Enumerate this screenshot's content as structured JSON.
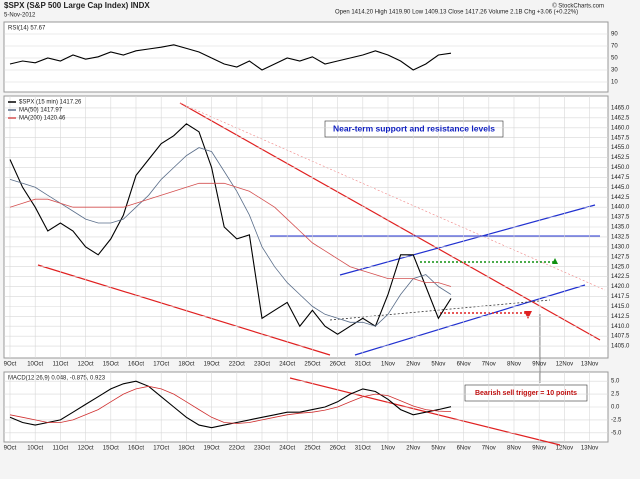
{
  "header": {
    "symbol": "$SPX (S&P 500 Large Cap Index) INDX",
    "date": "5-Nov-2012",
    "quote": "Open 1414.20  High 1419.90  Low 1409.13  Close 1417.26  Volume 2.1B  Chg +3.06 (+0.22%)",
    "source": "© StockCharts.com"
  },
  "chart_data": [
    {
      "type": "line",
      "title": "RSI(14) 57.67",
      "categories": [
        "9Oct",
        null,
        "10Oct",
        null,
        "11Oct",
        null,
        "12Oct",
        null,
        "15Oct",
        null,
        "16Oct",
        null,
        "17Oct",
        null,
        "18Oct",
        null,
        "19Oct",
        null,
        "22Oct",
        null,
        "23Oct",
        null,
        "24Oct",
        null,
        "25Oct",
        null,
        "26Oct",
        null,
        "31Oct",
        null,
        "1Nov",
        null,
        "2Nov",
        null,
        "5Nov",
        null,
        "6Nov",
        null,
        "7Nov",
        null,
        "8Nov",
        null,
        "9Nov",
        null,
        "12Nov",
        null,
        "13Nov",
        null
      ],
      "series": [
        {
          "color": "#000000",
          "values": [
            40,
            45,
            42,
            50,
            45,
            55,
            48,
            52,
            60,
            55,
            62,
            65,
            68,
            72,
            66,
            60,
            50,
            40,
            35,
            45,
            30,
            40,
            50,
            45,
            52,
            40,
            45,
            50,
            55,
            62,
            55,
            45,
            30,
            40,
            55,
            58,
            null,
            null,
            null,
            null,
            null,
            null,
            null,
            null,
            null,
            null,
            null,
            null
          ]
        }
      ],
      "ylim": [
        0,
        100
      ],
      "yticks": [
        10,
        30,
        50,
        70,
        90
      ],
      "grid": true
    },
    {
      "type": "line",
      "categories": [
        "9Oct",
        null,
        "10Oct",
        null,
        "11Oct",
        null,
        "12Oct",
        null,
        "15Oct",
        null,
        "16Oct",
        null,
        "17Oct",
        null,
        "18Oct",
        null,
        "19Oct",
        null,
        "22Oct",
        null,
        "23Oct",
        null,
        "24Oct",
        null,
        "25Oct",
        null,
        "26Oct",
        null,
        "31Oct",
        null,
        "1Nov",
        null,
        "2Nov",
        null,
        "5Nov",
        null,
        "6Nov",
        null,
        "7Nov",
        null,
        "8Nov",
        null,
        "9Nov",
        null,
        "12Nov",
        null,
        "13Nov",
        null
      ],
      "series": [
        {
          "name": "$SPX (15 min) 1417.26",
          "color": "#000000",
          "values": [
            1452,
            1445,
            1440,
            1434,
            1436,
            1434,
            1430,
            1428,
            1432,
            1438,
            1448,
            1452,
            1456,
            1458,
            1461,
            1459,
            1450,
            1435,
            1432,
            1433,
            1412,
            1414,
            1416,
            1410,
            1414,
            1410,
            1408,
            1410,
            1412,
            1410,
            1418,
            1428,
            1428,
            1420,
            1412,
            1417,
            null,
            null,
            null,
            null,
            null,
            null,
            null,
            null,
            null,
            null,
            null,
            null
          ]
        },
        {
          "name": "MA(50) 1417.97",
          "color": "#5a6e8a",
          "values": [
            1447,
            1446,
            1445,
            1443,
            1441,
            1439,
            1437,
            1436,
            1436,
            1437,
            1440,
            1443,
            1447,
            1450,
            1453,
            1455,
            1454,
            1449,
            1444,
            1438,
            1430,
            1425,
            1421,
            1418,
            1415,
            1413,
            1412,
            1411,
            1411,
            1410,
            1413,
            1418,
            1422,
            1423,
            1420,
            1418,
            null,
            null,
            null,
            null,
            null,
            null,
            null,
            null,
            null,
            null,
            null,
            null
          ]
        },
        {
          "name": "MA(200) 1420.46",
          "color": "#d45050",
          "values": [
            1440,
            1441,
            1442,
            1442,
            1441,
            1440,
            1440,
            1440,
            1440,
            1440,
            1441,
            1442,
            1443,
            1444,
            1445,
            1446,
            1446,
            1446,
            1445,
            1444,
            1442,
            1440,
            1437,
            1434,
            1431,
            1429,
            1427,
            1425,
            1424,
            1423,
            1422,
            1422,
            1422,
            1421,
            1421,
            1420,
            null,
            null,
            null,
            null,
            null,
            null,
            null,
            null,
            null,
            null,
            null,
            null
          ]
        }
      ],
      "ylim": [
        1403,
        1467
      ],
      "yticks": [
        {
          "value": 1405,
          "label": "1405.0"
        },
        {
          "value": 1407.5,
          "label": "1407.5"
        },
        {
          "value": 1410,
          "label": "1410.0"
        },
        {
          "value": 1412.5,
          "label": "1412.5"
        },
        {
          "value": 1415,
          "label": "1415.0"
        },
        {
          "value": 1417.5,
          "label": "1417.5"
        },
        {
          "value": 1420,
          "label": "1420.0"
        },
        {
          "value": 1422.5,
          "label": "1422.5"
        },
        {
          "value": 1425,
          "label": "1425.0"
        },
        {
          "value": 1427.5,
          "label": "1427.5"
        },
        {
          "value": 1430,
          "label": "1430.0"
        },
        {
          "value": 1432.5,
          "label": "1432.5"
        },
        {
          "value": 1435,
          "label": "1435.0"
        },
        {
          "value": 1437.5,
          "label": "1437.5"
        },
        {
          "value": 1440,
          "label": "1440.0"
        },
        {
          "value": 1442.5,
          "label": "1442.5"
        },
        {
          "value": 1445,
          "label": "1445.0"
        },
        {
          "value": 1447.5,
          "label": "1447.5"
        },
        {
          "value": 1450,
          "label": "1450.0"
        },
        {
          "value": 1452.5,
          "label": "1452.5"
        },
        {
          "value": 1455,
          "label": "1455.0"
        },
        {
          "value": 1457.5,
          "label": "1457.5"
        },
        {
          "value": 1460,
          "label": "1460.0"
        },
        {
          "value": 1462.5,
          "label": "1462.5"
        },
        {
          "value": 1465,
          "label": "1465.0"
        }
      ],
      "grid": true,
      "annotations": [
        "Near-term support and resistance levels",
        "Bearish sell trigger = 10 points"
      ]
    },
    {
      "type": "line",
      "title": "MACD(12,26,9) 0.048, -0.875, 0.923",
      "categories": [
        "9Oct",
        null,
        "10Oct",
        null,
        "11Oct",
        null,
        "12Oct",
        null,
        "15Oct",
        null,
        "16Oct",
        null,
        "17Oct",
        null,
        "18Oct",
        null,
        "19Oct",
        null,
        "22Oct",
        null,
        "23Oct",
        null,
        "24Oct",
        null,
        "25Oct",
        null,
        "26Oct",
        null,
        "31Oct",
        null,
        "1Nov",
        null,
        "2Nov",
        null,
        "5Nov",
        null,
        "6Nov",
        null,
        "7Nov",
        null,
        "8Nov",
        null,
        "9Nov",
        null,
        "12Nov",
        null,
        "13Nov",
        null
      ],
      "series": [
        {
          "color": "#000000",
          "values": [
            -2,
            -3,
            -3.5,
            -3,
            -2.5,
            -1,
            0.5,
            2,
            3.5,
            4.5,
            5,
            4,
            2,
            0,
            -2,
            -3.5,
            -4,
            -3.5,
            -3,
            -2.5,
            -2,
            -1.5,
            -1,
            -1,
            -0.5,
            0,
            1,
            2.5,
            3.5,
            3,
            1.5,
            -0.5,
            -1.5,
            -1,
            -0.5,
            0.05,
            null,
            null,
            null,
            null,
            null,
            null,
            null,
            null,
            null,
            null,
            null,
            null
          ]
        },
        {
          "color": "#d03030",
          "values": [
            -1.5,
            -2,
            -2.5,
            -3,
            -3,
            -2.5,
            -1.5,
            -0.5,
            1,
            2.5,
            3.5,
            4,
            3.5,
            2.5,
            1,
            -0.5,
            -2,
            -3,
            -3.2,
            -3,
            -2.5,
            -2,
            -1.5,
            -1.2,
            -1,
            -0.6,
            0,
            1,
            2,
            2.5,
            2.2,
            1.2,
            0.2,
            -0.5,
            -0.8,
            -0.9,
            null,
            null,
            null,
            null,
            null,
            null,
            null,
            null,
            null,
            null,
            null,
            null
          ]
        }
      ],
      "ylim": [
        -6,
        6
      ],
      "yticks": [
        {
          "value": -5,
          "label": "-5.0"
        },
        {
          "value": -2.5,
          "label": "-2.5"
        },
        {
          "value": 0,
          "label": "0.0"
        },
        {
          "value": 2.5,
          "label": "2.5"
        },
        {
          "value": 5,
          "label": "5.0"
        }
      ],
      "grid": true
    }
  ]
}
